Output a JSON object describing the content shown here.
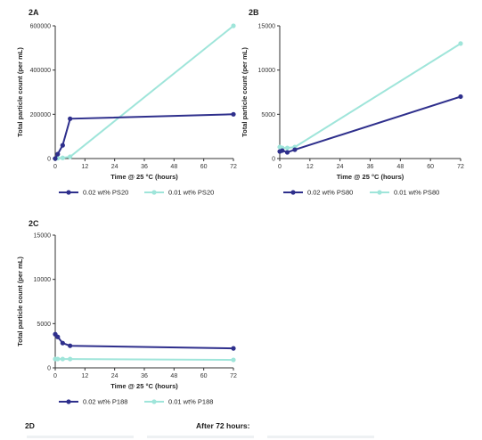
{
  "chart_data": [
    {
      "panel": "2A",
      "type": "line",
      "xlabel": "Time @ 25 °C (hours)",
      "ylabel": "Total particle count (per mL)",
      "xlim": [
        0,
        72
      ],
      "ylim": [
        0,
        600000
      ],
      "xticks": [
        0,
        12,
        24,
        36,
        48,
        60,
        72
      ],
      "yticks": [
        0,
        200000,
        400000,
        600000
      ],
      "ytick_labels": [
        "0",
        "200000",
        "400000",
        "600000"
      ],
      "legend_position": "bottom",
      "series": [
        {
          "name": "0.02 wt% PS20",
          "color": "#2e2f8c",
          "x": [
            0,
            1,
            3,
            6,
            72
          ],
          "y": [
            0,
            20000,
            60000,
            180000,
            200000
          ]
        },
        {
          "name": "0.01 wt% PS20",
          "color": "#9fe5da",
          "x": [
            0,
            1,
            3,
            6,
            72
          ],
          "y": [
            0,
            2000,
            3000,
            8000,
            600000
          ]
        }
      ]
    },
    {
      "panel": "2B",
      "type": "line",
      "xlabel": "Time @ 25 °C (hours)",
      "ylabel": "Total particle count (per mL)",
      "xlim": [
        0,
        72
      ],
      "ylim": [
        0,
        15000
      ],
      "xticks": [
        0,
        12,
        24,
        36,
        48,
        60,
        72
      ],
      "yticks": [
        0,
        5000,
        10000,
        15000
      ],
      "ytick_labels": [
        "0",
        "5000",
        "10000",
        "15000"
      ],
      "legend_position": "bottom",
      "series": [
        {
          "name": "0.02 wt% PS80",
          "color": "#2e2f8c",
          "x": [
            0,
            1,
            3,
            6,
            72
          ],
          "y": [
            800,
            900,
            700,
            1000,
            7000
          ]
        },
        {
          "name": "0.01 wt% PS80",
          "color": "#9fe5da",
          "x": [
            0,
            1,
            3,
            6,
            72
          ],
          "y": [
            1300,
            1200,
            1200,
            1300,
            13000
          ]
        }
      ]
    },
    {
      "panel": "2C",
      "type": "line",
      "xlabel": "Time @ 25 °C (hours)",
      "ylabel": "Total particle count (per mL)",
      "xlim": [
        0,
        72
      ],
      "ylim": [
        0,
        15000
      ],
      "xticks": [
        0,
        12,
        24,
        36,
        48,
        60,
        72
      ],
      "yticks": [
        0,
        5000,
        10000,
        15000
      ],
      "ytick_labels": [
        "0",
        "5000",
        "10000",
        "15000"
      ],
      "legend_position": "bottom",
      "series": [
        {
          "name": "0.02 wt% P188",
          "color": "#2e2f8c",
          "x": [
            0,
            1,
            3,
            6,
            72
          ],
          "y": [
            3800,
            3500,
            2800,
            2500,
            2200
          ]
        },
        {
          "name": "0.01 wt% P188",
          "color": "#9fe5da",
          "x": [
            0,
            1,
            3,
            6,
            72
          ],
          "y": [
            1000,
            1000,
            1000,
            1000,
            900
          ]
        }
      ]
    }
  ],
  "panel_labels": {
    "a": "2A",
    "b": "2B",
    "c": "2C",
    "d": "2D"
  },
  "after_label": "After 72 hours:"
}
